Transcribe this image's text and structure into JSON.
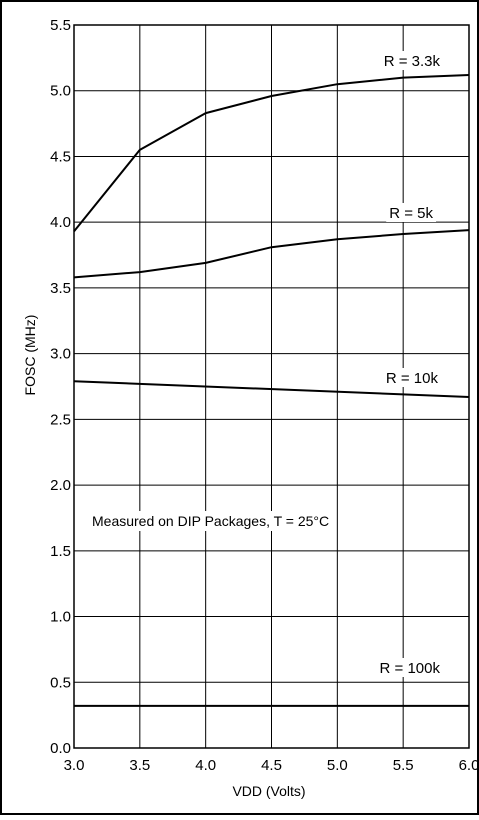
{
  "chart_data": {
    "type": "line",
    "title": "",
    "xlabel": "VDD (Volts)",
    "ylabel": "FOSC (MHz)",
    "xlim": [
      3.0,
      6.0
    ],
    "ylim": [
      0.0,
      5.5
    ],
    "x_ticks": [
      "3.0",
      "3.5",
      "4.0",
      "4.5",
      "5.0",
      "5.5",
      "6.0"
    ],
    "y_ticks": [
      "0.0",
      "0.5",
      "1.0",
      "1.5",
      "2.0",
      "2.5",
      "3.0",
      "3.5",
      "4.0",
      "4.5",
      "5.0",
      "5.5"
    ],
    "grid": true,
    "annotation": "Measured on DIP Packages, T = 25°C",
    "series": [
      {
        "name": "R = 3.3k",
        "x": [
          3.0,
          3.5,
          4.0,
          4.5,
          5.0,
          5.5,
          6.0
        ],
        "y": [
          3.93,
          4.55,
          4.83,
          4.96,
          5.05,
          5.1,
          5.12
        ]
      },
      {
        "name": "R = 5k",
        "x": [
          3.0,
          3.5,
          4.0,
          4.5,
          5.0,
          5.5,
          6.0
        ],
        "y": [
          3.58,
          3.62,
          3.69,
          3.81,
          3.87,
          3.91,
          3.94
        ]
      },
      {
        "name": "R = 10k",
        "x": [
          3.0,
          6.0
        ],
        "y": [
          2.79,
          2.67
        ]
      },
      {
        "name": "R = 100k",
        "x": [
          3.0,
          6.0
        ],
        "y": [
          0.32,
          0.32
        ]
      }
    ]
  }
}
